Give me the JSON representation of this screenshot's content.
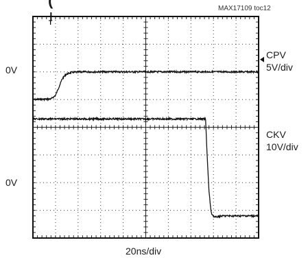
{
  "chart_data": {
    "type": "line",
    "title_fragment": "( ",
    "figure_id": "MAX17109 toc12",
    "time_scale": "20ns/div",
    "divisions": {
      "x": 10,
      "y": 8
    },
    "channels": [
      {
        "name": "CPV",
        "scale": "5V/div",
        "ground_label": "0V",
        "ground_div": 2.1,
        "description_points_div": [
          [
            0.0,
            3.0
          ],
          [
            0.8,
            2.98
          ],
          [
            1.0,
            2.85
          ],
          [
            1.15,
            2.55
          ],
          [
            1.3,
            2.25
          ],
          [
            1.45,
            2.1
          ],
          [
            1.7,
            2.02
          ],
          [
            2.2,
            2.0
          ],
          [
            10.0,
            2.0
          ]
        ]
      },
      {
        "name": "CKV",
        "scale": "10V/div",
        "ground_label": "0V",
        "ground_div": 6.4,
        "description_points_div": [
          [
            0.0,
            3.7
          ],
          [
            7.65,
            3.7
          ],
          [
            7.72,
            5.0
          ],
          [
            7.8,
            6.3
          ],
          [
            7.9,
            7.1
          ],
          [
            8.05,
            7.25
          ],
          [
            8.4,
            7.2
          ],
          [
            10.0,
            7.2
          ]
        ]
      }
    ],
    "trigger_marker": "T",
    "ylabel": "",
    "xlabel": ""
  }
}
